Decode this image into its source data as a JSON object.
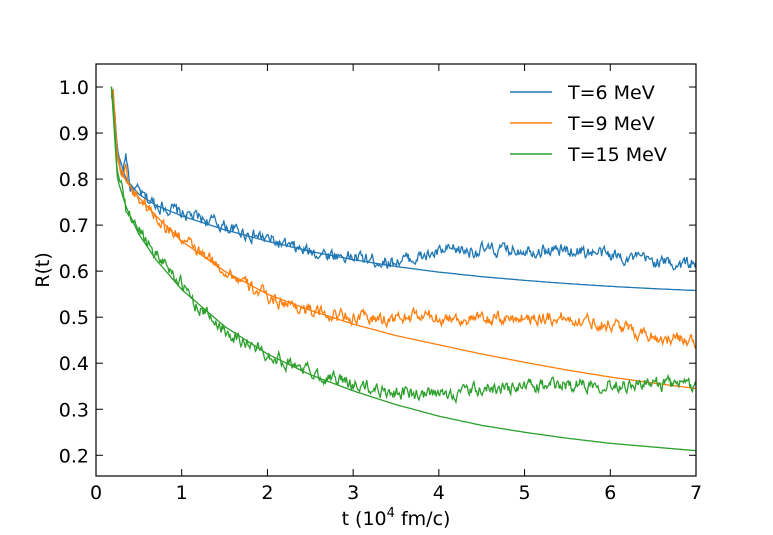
{
  "chart_data": {
    "type": "line",
    "title": "",
    "xlabel": "t (10",
    "xlabel_sup": "4",
    "xlabel_tail": " fm/c)",
    "ylabel": "R(t)",
    "xlim": [
      0,
      7
    ],
    "ylim": [
      0.155,
      1.05
    ],
    "x_ticks": [
      0,
      1,
      2,
      3,
      4,
      5,
      6,
      7
    ],
    "x_tick_labels": [
      "0",
      "1",
      "2",
      "3",
      "4",
      "5",
      "6",
      "7"
    ],
    "y_ticks": [
      0.2,
      0.3,
      0.4,
      0.5,
      0.6,
      0.7,
      0.8,
      0.9,
      1.0
    ],
    "y_tick_labels": [
      "0.2",
      "0.3",
      "0.4",
      "0.5",
      "0.6",
      "0.7",
      "0.8",
      "0.9",
      "1.0"
    ],
    "grid": false,
    "legend_position": "top-right",
    "series": [
      {
        "name": "T=6 MeV",
        "color": "#1f77b4",
        "noisy": {
          "x": [
            0.18,
            0.2,
            0.25,
            0.3,
            0.35,
            0.4,
            0.5,
            0.6,
            0.7,
            0.8,
            1.0,
            1.2,
            1.4,
            1.6,
            1.8,
            2.0,
            2.2,
            2.4,
            2.6,
            2.8,
            3.0,
            3.2,
            3.4,
            3.6,
            3.8,
            4.0,
            4.2,
            4.4,
            4.6,
            4.8,
            5.0,
            5.2,
            5.4,
            5.6,
            5.8,
            6.0,
            6.2,
            6.4,
            6.6,
            6.8,
            7.0
          ],
          "y": [
            0.97,
            1.0,
            0.86,
            0.8,
            0.86,
            0.78,
            0.77,
            0.755,
            0.745,
            0.74,
            0.725,
            0.715,
            0.705,
            0.69,
            0.68,
            0.67,
            0.655,
            0.645,
            0.64,
            0.635,
            0.63,
            0.625,
            0.62,
            0.625,
            0.63,
            0.64,
            0.645,
            0.645,
            0.645,
            0.645,
            0.65,
            0.645,
            0.645,
            0.645,
            0.64,
            0.635,
            0.63,
            0.625,
            0.62,
            0.615,
            0.62
          ]
        },
        "fit": {
          "x": [
            0.18,
            0.25,
            0.35,
            0.5,
            0.7,
            1.0,
            1.5,
            2.0,
            2.5,
            3.0,
            3.5,
            4.0,
            4.5,
            5.0,
            5.5,
            6.0,
            6.5,
            7.0
          ],
          "y": [
            1.0,
            0.86,
            0.8,
            0.767,
            0.743,
            0.72,
            0.69,
            0.665,
            0.643,
            0.625,
            0.61,
            0.598,
            0.588,
            0.58,
            0.573,
            0.567,
            0.562,
            0.558
          ]
        }
      },
      {
        "name": "T=9 MeV",
        "color": "#ff7f0e",
        "noisy": {
          "x": [
            0.18,
            0.2,
            0.25,
            0.3,
            0.35,
            0.4,
            0.5,
            0.6,
            0.7,
            0.8,
            1.0,
            1.2,
            1.4,
            1.6,
            1.8,
            2.0,
            2.2,
            2.4,
            2.6,
            2.8,
            3.0,
            3.2,
            3.4,
            3.6,
            3.8,
            4.0,
            4.2,
            4.4,
            4.6,
            4.8,
            5.0,
            5.2,
            5.4,
            5.6,
            5.8,
            6.0,
            6.2,
            6.4,
            6.6,
            6.8,
            7.0
          ],
          "y": [
            0.98,
            1.01,
            0.85,
            0.81,
            0.82,
            0.78,
            0.76,
            0.74,
            0.72,
            0.7,
            0.67,
            0.64,
            0.615,
            0.59,
            0.565,
            0.545,
            0.53,
            0.52,
            0.51,
            0.505,
            0.5,
            0.497,
            0.495,
            0.5,
            0.502,
            0.5,
            0.497,
            0.495,
            0.495,
            0.497,
            0.5,
            0.5,
            0.498,
            0.495,
            0.49,
            0.485,
            0.475,
            0.465,
            0.455,
            0.45,
            0.45
          ]
        },
        "fit": {
          "x": [
            0.18,
            0.25,
            0.35,
            0.5,
            0.7,
            1.0,
            1.5,
            2.0,
            2.5,
            3.0,
            3.5,
            4.0,
            4.5,
            5.0,
            5.5,
            6.0,
            6.5,
            7.0
          ],
          "y": [
            1.0,
            0.84,
            0.795,
            0.76,
            0.72,
            0.665,
            0.6,
            0.55,
            0.515,
            0.485,
            0.46,
            0.44,
            0.42,
            0.402,
            0.385,
            0.37,
            0.357,
            0.345
          ]
        }
      },
      {
        "name": "T=15 MeV",
        "color": "#2ca02c",
        "noisy": {
          "x": [
            0.18,
            0.2,
            0.25,
            0.3,
            0.35,
            0.4,
            0.5,
            0.6,
            0.7,
            0.8,
            1.0,
            1.2,
            1.4,
            1.6,
            1.8,
            2.0,
            2.2,
            2.4,
            2.6,
            2.8,
            3.0,
            3.2,
            3.4,
            3.6,
            3.8,
            4.0,
            4.2,
            4.4,
            4.6,
            4.8,
            5.0,
            5.2,
            5.4,
            5.6,
            5.8,
            6.0,
            6.2,
            6.4,
            6.6,
            6.8,
            7.0
          ],
          "y": [
            1.0,
            0.96,
            0.8,
            0.8,
            0.73,
            0.72,
            0.69,
            0.665,
            0.64,
            0.62,
            0.57,
            0.52,
            0.49,
            0.46,
            0.44,
            0.42,
            0.405,
            0.39,
            0.375,
            0.365,
            0.355,
            0.345,
            0.34,
            0.335,
            0.33,
            0.33,
            0.335,
            0.34,
            0.345,
            0.345,
            0.35,
            0.35,
            0.352,
            0.355,
            0.355,
            0.355,
            0.355,
            0.355,
            0.355,
            0.352,
            0.35
          ]
        },
        "fit": {
          "x": [
            0.18,
            0.25,
            0.35,
            0.5,
            0.7,
            1.0,
            1.5,
            2.0,
            2.5,
            3.0,
            3.5,
            4.0,
            4.5,
            5.0,
            5.5,
            6.0,
            6.5,
            7.0
          ],
          "y": [
            1.0,
            0.8,
            0.74,
            0.68,
            0.625,
            0.56,
            0.48,
            0.42,
            0.375,
            0.34,
            0.31,
            0.285,
            0.265,
            0.25,
            0.237,
            0.226,
            0.218,
            0.21
          ]
        }
      }
    ]
  }
}
